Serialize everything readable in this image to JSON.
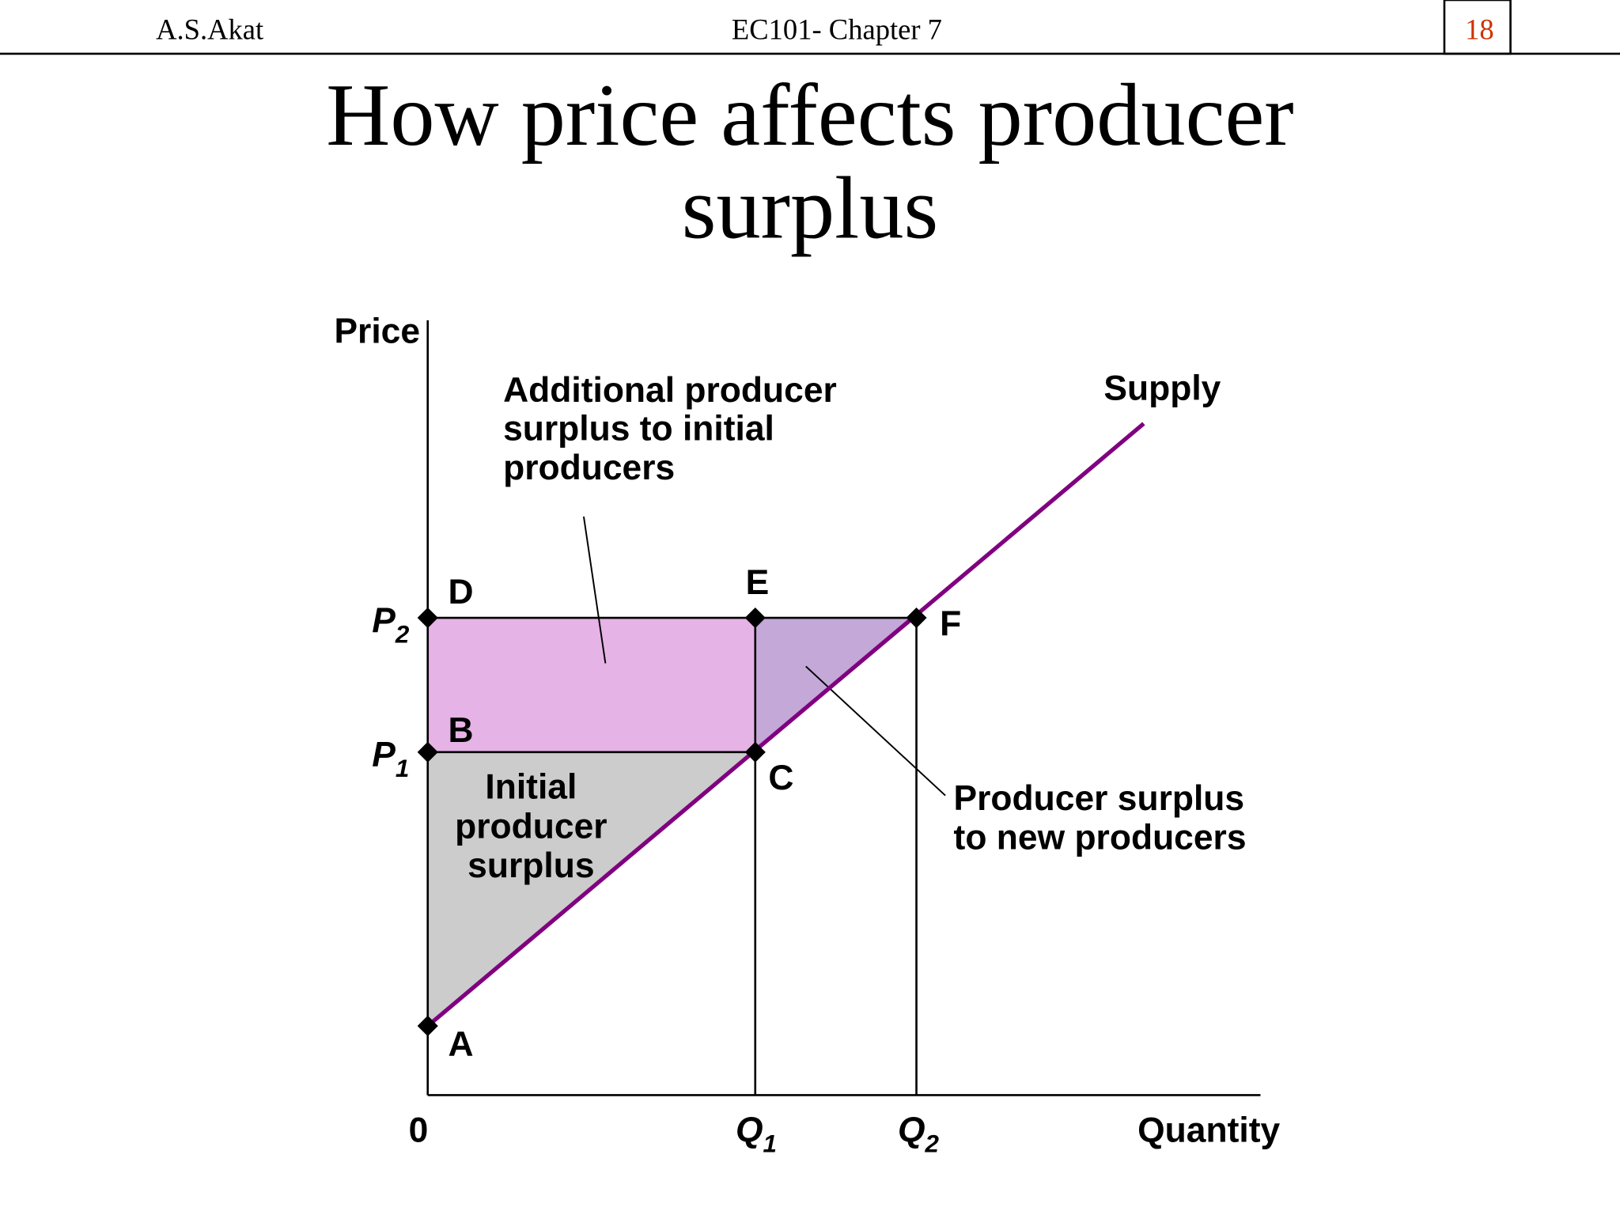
{
  "header": {
    "author": "A.S.Akat",
    "course": "EC101- Chapter 7",
    "page": "18"
  },
  "title": {
    "lines": [
      "How price affects producer",
      "surplus"
    ]
  },
  "diagram": {
    "y_axis_label": "Price",
    "x_axis_label": "Quantity",
    "origin_label": "0",
    "curve_label": "Supply",
    "price_labels": [
      {
        "letter": "P",
        "subscript": "2"
      },
      {
        "letter": "P",
        "subscript": "1"
      }
    ],
    "quantity_labels": [
      {
        "letter": "Q",
        "subscript": "1"
      },
      {
        "letter": "Q",
        "subscript": "2"
      }
    ],
    "points": [
      "A",
      "B",
      "C",
      "D",
      "E",
      "F"
    ],
    "annotations": {
      "additional": [
        "Additional producer",
        "surplus to initial",
        "producers"
      ],
      "initial": [
        "Initial",
        "producer",
        "surplus"
      ],
      "new": [
        "Producer surplus",
        "to new producers"
      ]
    }
  }
}
